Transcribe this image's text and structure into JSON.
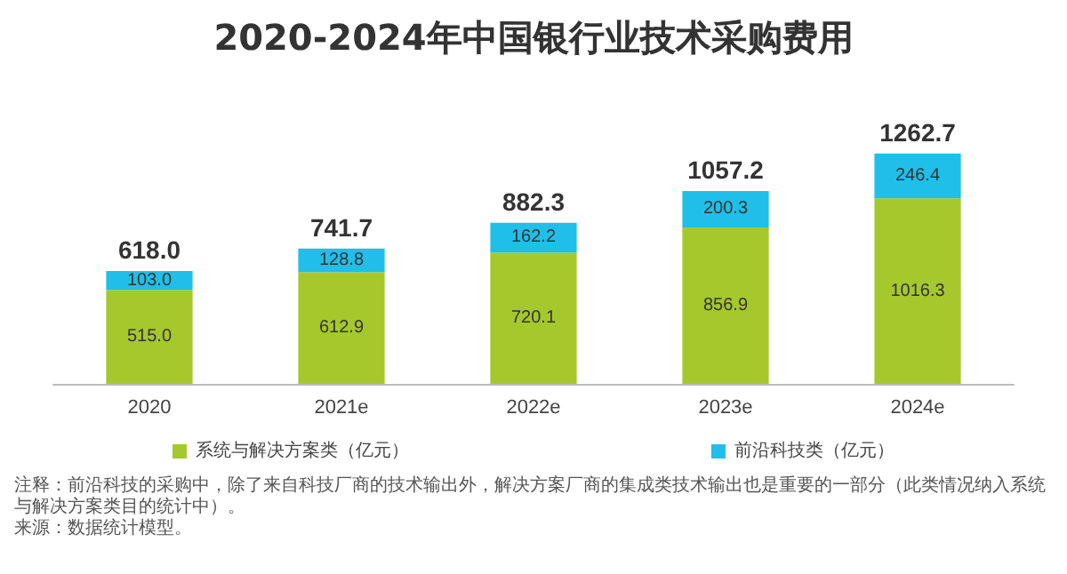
{
  "chart_data": {
    "type": "bar",
    "title": "2020-2024年中国银行业技术采购费用",
    "categories": [
      "2020",
      "2021e",
      "2022e",
      "2023e",
      "2024e"
    ],
    "stacked": true,
    "legend": "bottom",
    "series": [
      {
        "name": "系统与解决方案类（亿元）",
        "color": "#a5c82d",
        "values": [
          515.0,
          612.9,
          720.1,
          856.9,
          1016.3
        ],
        "value_labels": [
          "515.0",
          "612.9",
          "720.1",
          "856.9",
          "1016.3"
        ]
      },
      {
        "name": "前沿科技类（亿元）",
        "color": "#1fbfea",
        "values": [
          103.0,
          128.8,
          162.2,
          200.3,
          246.4
        ],
        "value_labels": [
          "103.0",
          "128.8",
          "162.2",
          "200.3",
          "246.4"
        ]
      }
    ],
    "totals": [
      "618.0",
      "741.7",
      "882.3",
      "1057.2",
      "1262.7"
    ],
    "annotations": [
      "注释：前沿科技的采购中，除了来自科技厂商的技术输出外，解决方案厂商的集成类技术输出也是重要的一部分（此类情况纳入系统与解决方案类目的统计中）。",
      "来源：数据统计模型。"
    ]
  }
}
